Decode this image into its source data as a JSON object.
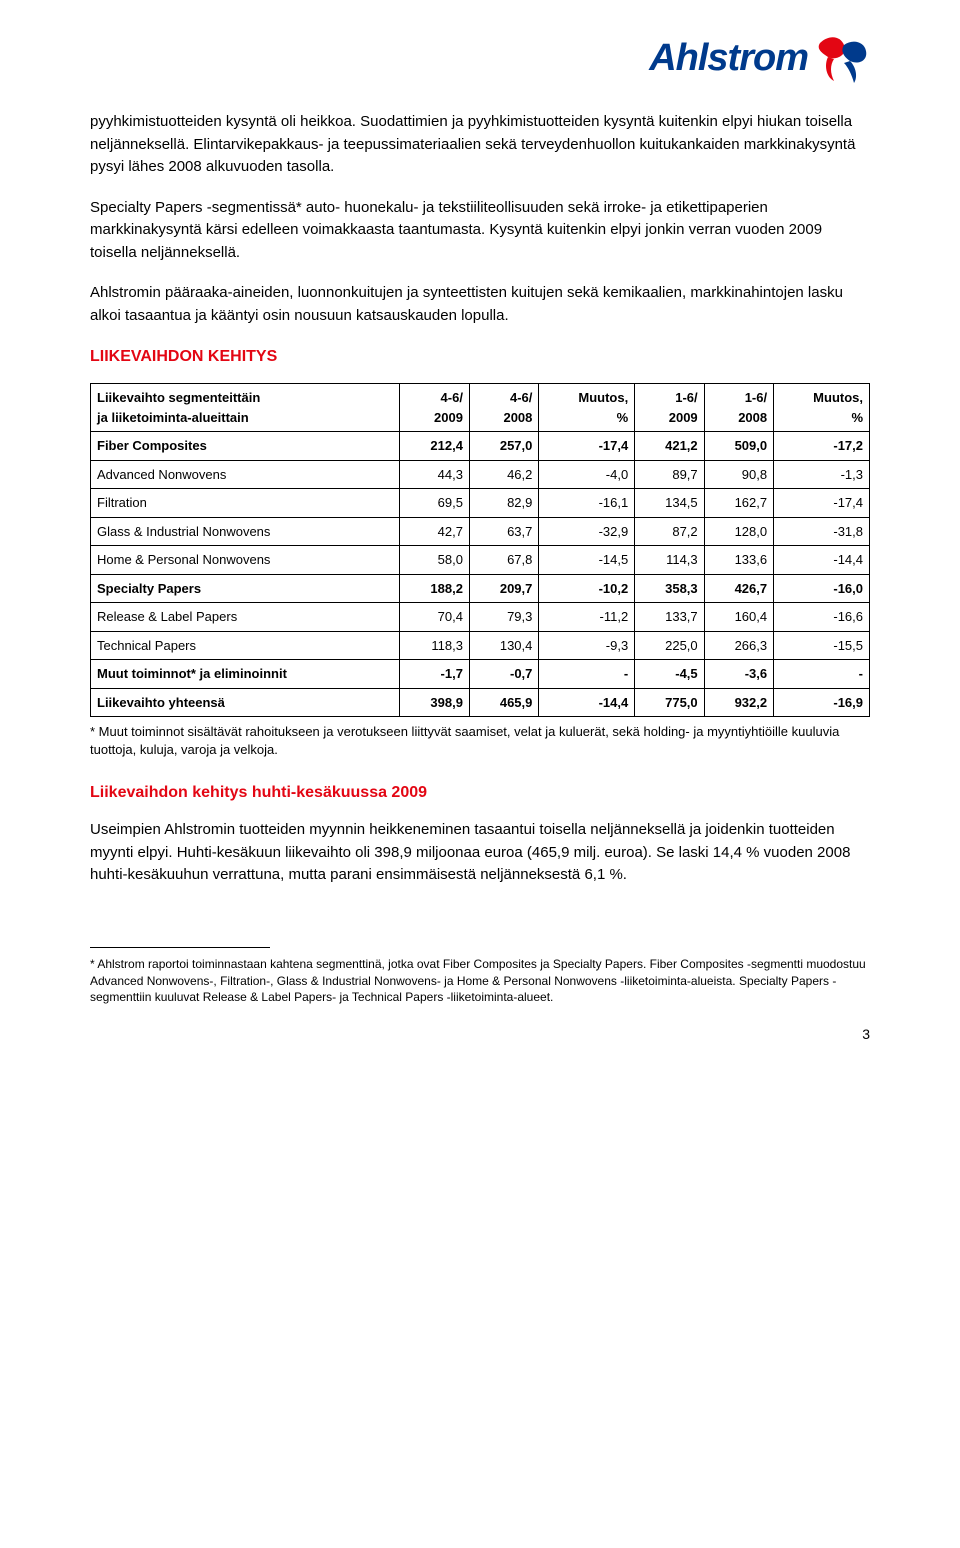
{
  "logo": {
    "text": "Ahlstrom"
  },
  "paragraphs": {
    "p1": "pyyhkimistuotteiden kysyntä oli heikkoa. Suodattimien ja pyyhkimistuotteiden kysyntä kuitenkin elpyi hiukan toisella neljänneksellä. Elintarvikepakkaus- ja teepussimateriaalien sekä terveydenhuollon kuitukankaiden markkinakysyntä pysyi lähes 2008 alkuvuoden tasolla.",
    "p2": "Specialty Papers -segmentissä* auto- huonekalu- ja tekstiiliteollisuuden sekä irroke- ja etikettipaperien markkinakysyntä kärsi edelleen voimakkaasta taantumasta. Kysyntä kuitenkin elpyi jonkin verran vuoden 2009 toisella neljänneksellä.",
    "p3": "Ahlstromin pääraaka-aineiden, luonnonkuitujen ja synteettisten kuitujen sekä kemikaalien, markkinahintojen lasku alkoi tasaantua ja kääntyi osin nousuun katsauskauden lopulla."
  },
  "headings": {
    "liikevaihdon_kehitys": "LIIKEVAIHDON KEHITYS",
    "sub": "Liikevaihdon kehitys huhti-kesäkuussa 2009"
  },
  "table": {
    "header": {
      "col0a": "Liikevaihto segmenteittäin",
      "col0b": "ja liiketoiminta-alueittain",
      "col1a": "4-6/",
      "col1b": "2009",
      "col2a": "4-6/",
      "col2b": "2008",
      "col3a": "Muutos,",
      "col3b": "%",
      "col4a": "1-6/",
      "col4b": "2009",
      "col5a": "1-6/",
      "col5b": "2008",
      "col6a": "Muutos,",
      "col6b": "%"
    },
    "rows": [
      {
        "label": "Fiber Composites",
        "v": [
          "212,4",
          "257,0",
          "-17,4",
          "421,2",
          "509,0",
          "-17,2"
        ],
        "bold": true
      },
      {
        "label": "Advanced Nonwovens",
        "v": [
          "44,3",
          "46,2",
          "-4,0",
          "89,7",
          "90,8",
          "-1,3"
        ],
        "indent": true
      },
      {
        "label": "Filtration",
        "v": [
          "69,5",
          "82,9",
          "-16,1",
          "134,5",
          "162,7",
          "-17,4"
        ],
        "indent": true
      },
      {
        "label": "Glass & Industrial Nonwovens",
        "v": [
          "42,7",
          "63,7",
          "-32,9",
          "87,2",
          "128,0",
          "-31,8"
        ],
        "indent": true
      },
      {
        "label": "Home & Personal Nonwovens",
        "v": [
          "58,0",
          "67,8",
          "-14,5",
          "114,3",
          "133,6",
          "-14,4"
        ],
        "indent": true
      },
      {
        "label": "Specialty Papers",
        "v": [
          "188,2",
          "209,7",
          "-10,2",
          "358,3",
          "426,7",
          "-16,0"
        ],
        "bold": true
      },
      {
        "label": "Release & Label Papers",
        "v": [
          "70,4",
          "79,3",
          "-11,2",
          "133,7",
          "160,4",
          "-16,6"
        ],
        "indent": true
      },
      {
        "label": "Technical Papers",
        "v": [
          "118,3",
          "130,4",
          "-9,3",
          "225,0",
          "266,3",
          "-15,5"
        ],
        "indent": true
      },
      {
        "label": "Muut toiminnot* ja eliminoinnit",
        "v": [
          "-1,7",
          "-0,7",
          "-",
          "-4,5",
          "-3,6",
          "-"
        ],
        "bold": true
      },
      {
        "label": "Liikevaihto yhteensä",
        "v": [
          "398,9",
          "465,9",
          "-14,4",
          "775,0",
          "932,2",
          "-16,9"
        ],
        "bold": true
      }
    ]
  },
  "table_note": "* Muut toiminnot sisältävät rahoitukseen ja verotukseen liittyvät saamiset, velat ja kuluerät, sekä holding- ja myyntiyhtiöille kuuluvia tuottoja, kuluja, varoja ja velkoja.",
  "after_table_para": "Useimpien Ahlstromin tuotteiden myynnin heikkeneminen tasaantui toisella neljänneksellä ja joidenkin tuotteiden myynti elpyi. Huhti-kesäkuun liikevaihto oli 398,9 miljoonaa euroa (465,9 milj. euroa). Se laski 14,4 % vuoden 2008 huhti-kesäkuuhun verrattuna, mutta parani ensimmäisestä neljänneksestä 6,1 %.",
  "footnote": "* Ahlstrom raportoi toiminnastaan kahtena segmenttinä, jotka ovat Fiber Composites ja Specialty Papers. Fiber Composites -segmentti muodostuu Advanced Nonwovens-, Filtration-, Glass & Industrial Nonwovens- ja Home & Personal Nonwovens -liiketoiminta-alueista. Specialty Papers -segmenttiin kuuluvat Release & Label Papers- ja Technical Papers -liiketoiminta-alueet.",
  "page_number": "3",
  "colors": {
    "brand_blue": "#003a8c",
    "brand_red": "#e30613",
    "text": "#000000",
    "bg": "#ffffff"
  }
}
